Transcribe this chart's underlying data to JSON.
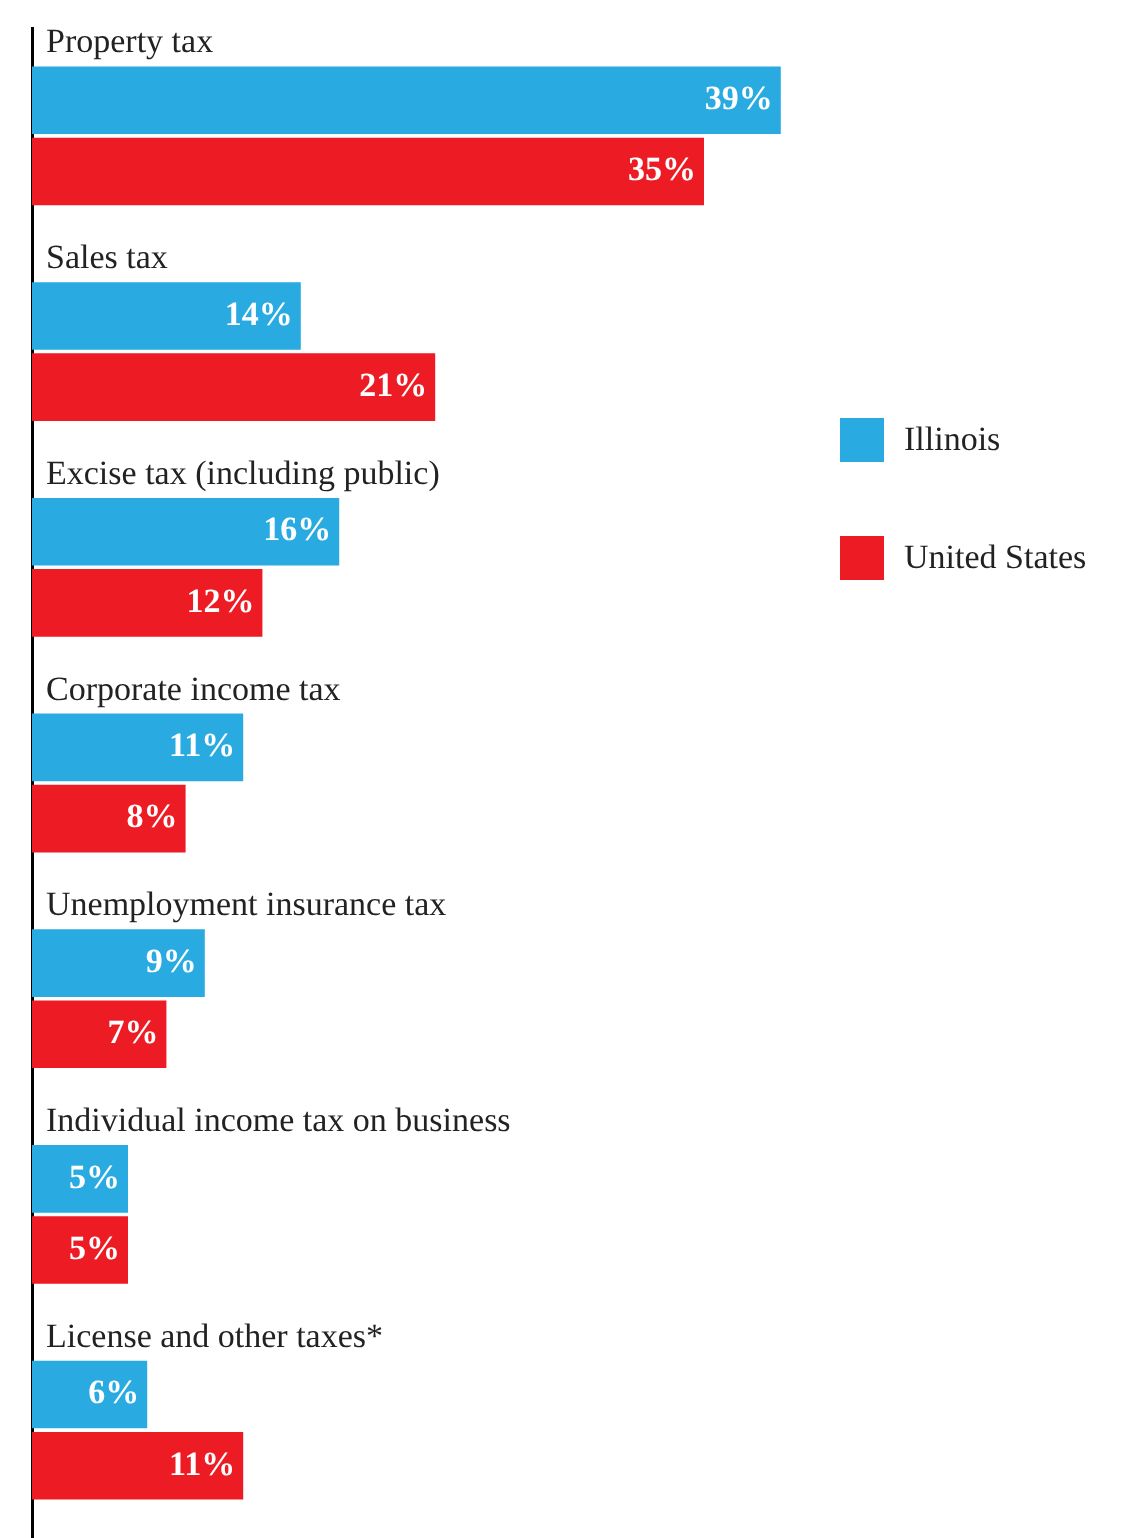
{
  "chart_data": {
    "type": "bar",
    "orientation": "horizontal",
    "categories": [
      "Property tax",
      "Sales tax",
      "Excise tax (including public)",
      "Corporate income tax",
      "Unemployment insurance tax",
      "Individual income tax on business",
      "License and other taxes*"
    ],
    "series": [
      {
        "name": "Illinois",
        "color": "#29abe2",
        "values": [
          39,
          14,
          16,
          11,
          9,
          5,
          6
        ],
        "value_labels": [
          "39%",
          "14%",
          "16%",
          "11%",
          "9%",
          "5%",
          "6%"
        ]
      },
      {
        "name": "United States",
        "color": "#ed1c24",
        "values": [
          35,
          21,
          12,
          8,
          7,
          5,
          11
        ],
        "value_labels": [
          "35%",
          "21%",
          "12%",
          "8%",
          "7%",
          "5%",
          "11%"
        ]
      }
    ],
    "legend": "right",
    "tick_labels": "y"
  }
}
